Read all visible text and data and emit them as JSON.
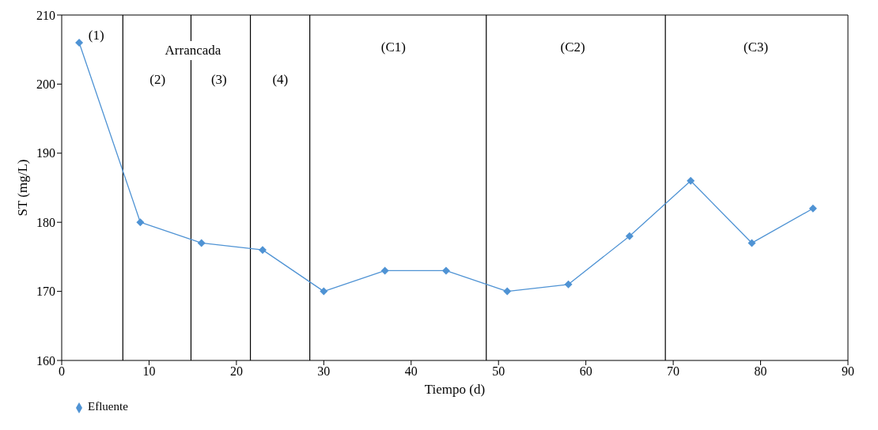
{
  "chart_data": {
    "type": "line",
    "xlabel": "Tiempo  (d)",
    "ylabel": "ST (mg/L)",
    "x": [
      2,
      9,
      16,
      23,
      30,
      37,
      44,
      51,
      58,
      65,
      72,
      79,
      86
    ],
    "series": [
      {
        "name": "Efluente",
        "color": "#4f93d4",
        "values": [
          206,
          180,
          177,
          176,
          170,
          173,
          173,
          170,
          171,
          178,
          186,
          177,
          182
        ]
      }
    ],
    "xlim": [
      0,
      90
    ],
    "xticks": [
      0,
      10,
      20,
      30,
      40,
      50,
      60,
      70,
      80,
      90
    ],
    "ylim": [
      160,
      210
    ],
    "yticks": [
      160,
      170,
      180,
      190,
      200,
      210
    ],
    "ref_lines": [
      {
        "axis": "x",
        "value": 7,
        "color": "#000000"
      },
      {
        "axis": "x",
        "value": 14.8,
        "color": "#000000"
      },
      {
        "axis": "x",
        "value": 21.6,
        "color": "#000000"
      },
      {
        "axis": "x",
        "value": 28.4,
        "color": "#000000"
      },
      {
        "axis": "x",
        "value": 48.6,
        "color": "#000000"
      },
      {
        "axis": "x",
        "value": 69.1,
        "color": "#000000"
      }
    ],
    "annotations": [
      "(1)",
      "Arrancada",
      "(2)",
      "(3)",
      "(4)",
      "(C1)",
      "(C2)",
      "(C3)"
    ],
    "grid": false,
    "legend": "bottom left",
    "marker": "diamond",
    "line_style": "solid"
  }
}
